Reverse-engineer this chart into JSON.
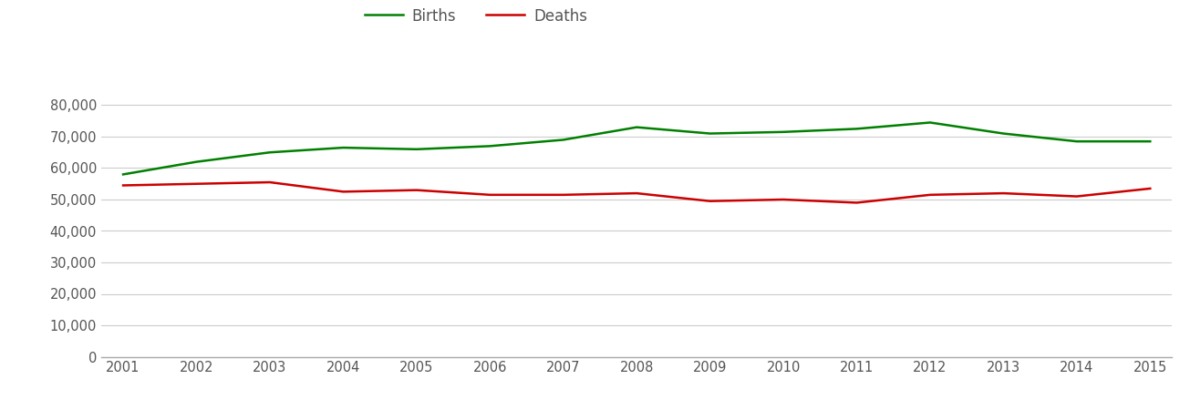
{
  "years": [
    2001,
    2002,
    2003,
    2004,
    2005,
    2006,
    2007,
    2008,
    2009,
    2010,
    2011,
    2012,
    2013,
    2014,
    2015
  ],
  "births": [
    58000,
    62000,
    65000,
    66500,
    66000,
    67000,
    69000,
    73000,
    71000,
    71500,
    72500,
    74500,
    71000,
    68500,
    68500
  ],
  "deaths": [
    54500,
    55000,
    55500,
    52500,
    53000,
    51500,
    51500,
    52000,
    49500,
    50000,
    49000,
    51500,
    52000,
    51000,
    53500
  ],
  "births_color": "#008000",
  "deaths_color": "#cc0000",
  "background_color": "#ffffff",
  "grid_color": "#cccccc",
  "ylim": [
    0,
    90000
  ],
  "ytick_step": 10000,
  "legend_labels": [
    "Births",
    "Deaths"
  ],
  "line_width": 1.8,
  "tick_label_color": "#555555",
  "tick_fontsize": 10.5
}
